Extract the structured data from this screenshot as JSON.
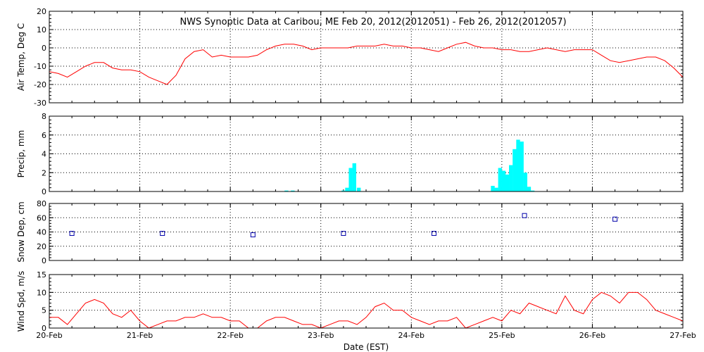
{
  "title": "NWS Synoptic Data at Caribou, ME   Feb 20, 2012(2012051) - Feb 26, 2012(2012057)",
  "xlabel": "Date (EST)",
  "x_tick_labels": [
    "20-Feb",
    "21-Feb",
    "22-Feb",
    "23-Feb",
    "24-Feb",
    "25-Feb",
    "26-Feb",
    "27-Feb"
  ],
  "colors": {
    "temp": "#ff0000",
    "precip": "#00ffff",
    "snow": "#0000aa",
    "wind": "#ff0000",
    "axes": "#000000"
  },
  "chart_data": [
    {
      "type": "line",
      "ylabel": "Air Temp, Deg C",
      "xlim": [
        0,
        7
      ],
      "ylim": [
        -30,
        20
      ],
      "y_ticks": [
        -30,
        -20,
        -10,
        0,
        10,
        20
      ],
      "grid": true,
      "series": [
        {
          "x": [
            0,
            0.1,
            0.2,
            0.3,
            0.4,
            0.5,
            0.6,
            0.7,
            0.8,
            0.9,
            1.0,
            1.1,
            1.2,
            1.3,
            1.4,
            1.5,
            1.6,
            1.7,
            1.8,
            1.9,
            2.0,
            2.1,
            2.2,
            2.3,
            2.4,
            2.5,
            2.6,
            2.7,
            2.8,
            2.9,
            3.0,
            3.1,
            3.2,
            3.3,
            3.4,
            3.5,
            3.6,
            3.7,
            3.8,
            3.9,
            4.0,
            4.1,
            4.2,
            4.3,
            4.4,
            4.5,
            4.6,
            4.7,
            4.8,
            4.9,
            5.0,
            5.1,
            5.2,
            5.3,
            5.4,
            5.5,
            5.6,
            5.7,
            5.8,
            5.9,
            6.0,
            6.1,
            6.2,
            6.3,
            6.4,
            6.5,
            6.6,
            6.7,
            6.8,
            6.9,
            7.0
          ],
          "y": [
            -13,
            -14,
            -16,
            -13,
            -10,
            -8,
            -8,
            -11,
            -12,
            -12,
            -13,
            -16,
            -18,
            -20,
            -15,
            -6,
            -2,
            -1,
            -5,
            -4,
            -5,
            -5,
            -5,
            -4,
            -1,
            1,
            2,
            2,
            1,
            -1,
            0,
            0,
            0,
            0,
            1,
            1,
            1,
            2,
            1,
            1,
            0,
            0,
            -1,
            -2,
            0,
            2,
            3,
            1,
            0,
            0,
            -1,
            -1,
            -2,
            -2,
            -1,
            0,
            -1,
            -2,
            -1,
            -1,
            -1,
            -4,
            -7,
            -8,
            -7,
            -6,
            -5,
            -5,
            -7,
            -11,
            -16
          ]
        }
      ]
    },
    {
      "type": "bar",
      "ylabel": "Precip, mm",
      "xlim": [
        0,
        7
      ],
      "ylim": [
        0,
        8
      ],
      "y_ticks": [
        0,
        2,
        4,
        6,
        8
      ],
      "grid": true,
      "bar_width": 0.042,
      "x": [
        2.62,
        2.69,
        3.25,
        3.29,
        3.33,
        3.37,
        3.42,
        4.9,
        4.94,
        4.98,
        5.02,
        5.06,
        5.1,
        5.14,
        5.18,
        5.22,
        5.26,
        5.3,
        5.34
      ],
      "values": [
        0.1,
        0.1,
        0.1,
        0.4,
        2.5,
        3.0,
        0.4,
        0.6,
        0.4,
        2.5,
        2.2,
        1.8,
        2.8,
        4.5,
        5.5,
        5.3,
        2.0,
        0.5,
        0.1
      ]
    },
    {
      "type": "scatter",
      "ylabel": "Snow Dep, cm",
      "xlim": [
        0,
        7
      ],
      "ylim": [
        0,
        80
      ],
      "y_ticks": [
        0,
        20,
        40,
        60,
        80
      ],
      "grid": true,
      "marker": "square",
      "x": [
        0.25,
        1.25,
        2.25,
        3.25,
        4.25,
        5.25,
        6.25
      ],
      "values": [
        38,
        38,
        36,
        38,
        38,
        63,
        58
      ]
    },
    {
      "type": "line",
      "ylabel": "Wind Spd, m/s",
      "xlim": [
        0,
        7
      ],
      "ylim": [
        0,
        15
      ],
      "y_ticks": [
        0,
        5,
        10,
        15
      ],
      "grid": true,
      "series": [
        {
          "x": [
            0,
            0.1,
            0.2,
            0.3,
            0.4,
            0.5,
            0.6,
            0.7,
            0.8,
            0.9,
            1.0,
            1.1,
            1.2,
            1.3,
            1.4,
            1.5,
            1.6,
            1.7,
            1.8,
            1.9,
            2.0,
            2.1,
            2.2,
            2.3,
            2.4,
            2.5,
            2.6,
            2.7,
            2.8,
            2.9,
            3.0,
            3.1,
            3.2,
            3.3,
            3.4,
            3.5,
            3.6,
            3.7,
            3.8,
            3.9,
            4.0,
            4.1,
            4.2,
            4.3,
            4.4,
            4.5,
            4.6,
            4.7,
            4.8,
            4.9,
            5.0,
            5.1,
            5.2,
            5.3,
            5.4,
            5.5,
            5.6,
            5.7,
            5.8,
            5.9,
            6.0,
            6.1,
            6.2,
            6.3,
            6.4,
            6.5,
            6.6,
            6.7,
            6.8,
            6.9,
            7.0
          ],
          "y": [
            3,
            3,
            1,
            4,
            7,
            8,
            7,
            4,
            3,
            5,
            2,
            0,
            1,
            2,
            2,
            3,
            3,
            4,
            3,
            3,
            2,
            2,
            0,
            0,
            2,
            3,
            3,
            2,
            1,
            1,
            0,
            1,
            2,
            2,
            1,
            3,
            6,
            7,
            5,
            5,
            3,
            2,
            1,
            2,
            2,
            3,
            0,
            1,
            2,
            3,
            2,
            5,
            4,
            7,
            6,
            5,
            4,
            9,
            5,
            4,
            8,
            10,
            9,
            7,
            10,
            10,
            8,
            5,
            4,
            3,
            2
          ]
        }
      ]
    }
  ]
}
